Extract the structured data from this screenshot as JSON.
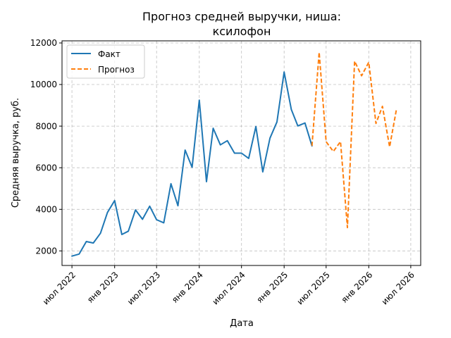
{
  "chart_data": {
    "type": "line",
    "title_lines": [
      "Прогноз средней выручки, ниша:",
      "ксилофон"
    ],
    "xlabel": "Дата",
    "ylabel": "Средняя выручка, руб.",
    "xlim": [
      "2022-05-19",
      "2026-08-13"
    ],
    "ylim": [
      1300,
      12100
    ],
    "x_ticks": [
      {
        "date": "2022-07-01",
        "label": "июл 2022"
      },
      {
        "date": "2023-01-01",
        "label": "янв 2023"
      },
      {
        "date": "2023-07-01",
        "label": "июл 2023"
      },
      {
        "date": "2024-01-01",
        "label": "янв 2024"
      },
      {
        "date": "2024-07-01",
        "label": "июл 2024"
      },
      {
        "date": "2025-01-01",
        "label": "янв 2025"
      },
      {
        "date": "2025-07-01",
        "label": "июл 2025"
      },
      {
        "date": "2026-01-01",
        "label": "янв 2026"
      },
      {
        "date": "2026-07-01",
        "label": "июл 2026"
      }
    ],
    "y_ticks": [
      {
        "value": 2000,
        "label": "2000"
      },
      {
        "value": 4000,
        "label": "4000"
      },
      {
        "value": 6000,
        "label": "6000"
      },
      {
        "value": 8000,
        "label": "8000"
      },
      {
        "value": 10000,
        "label": "10000"
      },
      {
        "value": 12000,
        "label": "12000"
      }
    ],
    "grid": true,
    "legend_position": "top-left",
    "series": [
      {
        "name": "Факт",
        "color": "#1f77b4",
        "style": "solid",
        "points": [
          {
            "x": "2022-07-01",
            "y": 1750
          },
          {
            "x": "2022-08-01",
            "y": 1850
          },
          {
            "x": "2022-09-01",
            "y": 2450
          },
          {
            "x": "2022-10-01",
            "y": 2380
          },
          {
            "x": "2022-11-01",
            "y": 2850
          },
          {
            "x": "2022-12-01",
            "y": 3850
          },
          {
            "x": "2023-01-01",
            "y": 4420
          },
          {
            "x": "2023-02-01",
            "y": 2790
          },
          {
            "x": "2023-03-01",
            "y": 2950
          },
          {
            "x": "2023-04-01",
            "y": 3970
          },
          {
            "x": "2023-05-01",
            "y": 3520
          },
          {
            "x": "2023-06-01",
            "y": 4150
          },
          {
            "x": "2023-07-01",
            "y": 3500
          },
          {
            "x": "2023-08-01",
            "y": 3350
          },
          {
            "x": "2023-09-01",
            "y": 5230
          },
          {
            "x": "2023-10-01",
            "y": 4170
          },
          {
            "x": "2023-11-01",
            "y": 6850
          },
          {
            "x": "2023-12-01",
            "y": 6020
          },
          {
            "x": "2024-01-01",
            "y": 9250
          },
          {
            "x": "2024-02-01",
            "y": 5330
          },
          {
            "x": "2024-03-01",
            "y": 7900
          },
          {
            "x": "2024-04-01",
            "y": 7100
          },
          {
            "x": "2024-05-01",
            "y": 7300
          },
          {
            "x": "2024-06-01",
            "y": 6700
          },
          {
            "x": "2024-07-01",
            "y": 6700
          },
          {
            "x": "2024-08-01",
            "y": 6450
          },
          {
            "x": "2024-09-01",
            "y": 7980
          },
          {
            "x": "2024-10-01",
            "y": 5800
          },
          {
            "x": "2024-11-01",
            "y": 7420
          },
          {
            "x": "2024-12-01",
            "y": 8200
          },
          {
            "x": "2025-01-01",
            "y": 10600
          },
          {
            "x": "2025-02-01",
            "y": 8800
          },
          {
            "x": "2025-03-01",
            "y": 8010
          },
          {
            "x": "2025-04-01",
            "y": 8150
          },
          {
            "x": "2025-05-01",
            "y": 7050
          }
        ]
      },
      {
        "name": "Прогноз",
        "color": "#ff7f0e",
        "style": "dashed",
        "points": [
          {
            "x": "2025-05-01",
            "y": 7050
          },
          {
            "x": "2025-06-01",
            "y": 11550
          },
          {
            "x": "2025-07-01",
            "y": 7250
          },
          {
            "x": "2025-08-01",
            "y": 6780
          },
          {
            "x": "2025-09-01",
            "y": 7260
          },
          {
            "x": "2025-10-01",
            "y": 3120
          },
          {
            "x": "2025-11-01",
            "y": 11120
          },
          {
            "x": "2025-12-01",
            "y": 10420
          },
          {
            "x": "2026-01-01",
            "y": 11070
          },
          {
            "x": "2026-02-01",
            "y": 8130
          },
          {
            "x": "2026-03-01",
            "y": 8950
          },
          {
            "x": "2026-04-01",
            "y": 7000
          },
          {
            "x": "2026-05-01",
            "y": 8850
          }
        ]
      }
    ]
  }
}
